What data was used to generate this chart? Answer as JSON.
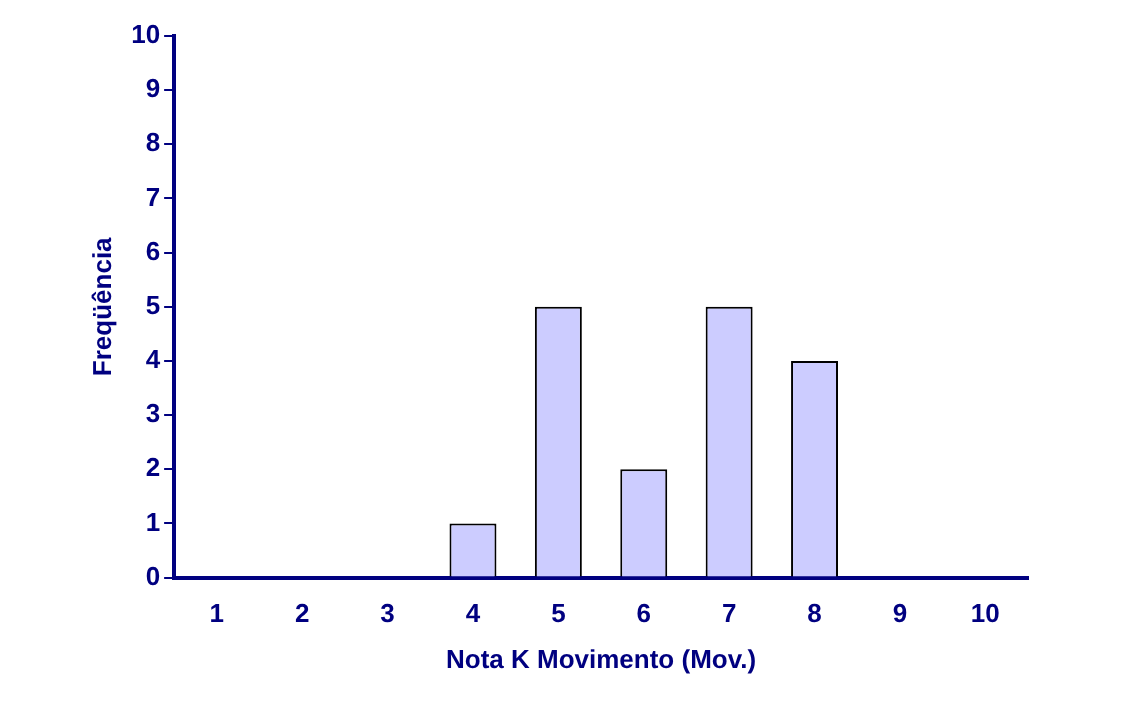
{
  "chart_data": {
    "type": "bar",
    "xlabel": "Nota K Movimento (Mov.)",
    "ylabel": "Freqüência",
    "categories": [
      "1",
      "2",
      "3",
      "4",
      "5",
      "6",
      "7",
      "8",
      "9",
      "10"
    ],
    "values": [
      0,
      0,
      0,
      1,
      5,
      2,
      5,
      4,
      0,
      0
    ],
    "color": "#ccccff",
    "ylim": [
      0,
      10
    ],
    "yticks": [
      0,
      1,
      2,
      3,
      4,
      5,
      6,
      7,
      8,
      9,
      10
    ],
    "grid": false,
    "legend": false
  }
}
